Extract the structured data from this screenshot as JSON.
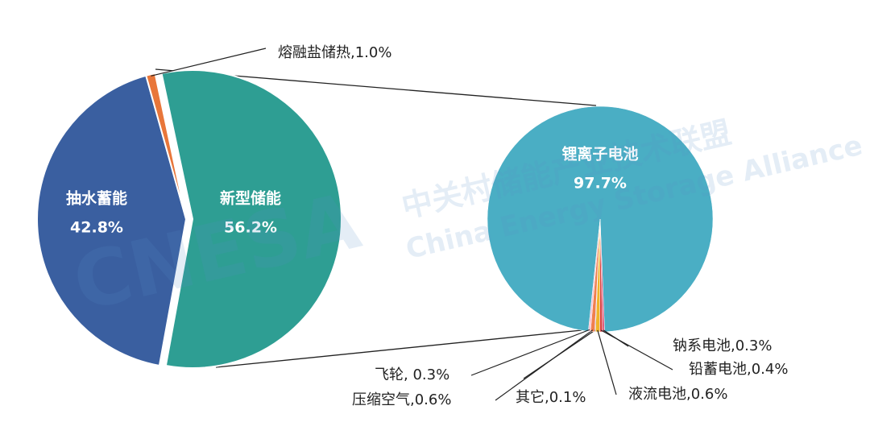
{
  "chart_data": [
    {
      "type": "pie",
      "categories": [
        "新型储能",
        "抽水蓄能",
        null
      ],
      "values": [
        56.2,
        42.8,
        1.0
      ],
      "value_labels": [
        "56.2%",
        "42.8%",
        "熔融盐储热,1.0%"
      ],
      "colors": [
        "#2e9e93",
        "#3a5fa0",
        "#e8763a"
      ]
    },
    {
      "type": "pie",
      "categories": [
        "锂离子电池",
        null,
        null,
        null,
        null,
        null,
        null
      ],
      "values": [
        97.7,
        0.3,
        0.4,
        0.6,
        0.1,
        0.6,
        0.3
      ],
      "value_labels": [
        "97.7%",
        "钠系电池,0.3%",
        "铅蓄电池,0.4%",
        "液流电池,0.6%",
        "其它,0.1%",
        "压缩空气,0.6%",
        "飞轮, 0.3%"
      ],
      "colors": [
        "#4aaec4",
        "#e05a7a",
        "#d94040",
        "#f0b429",
        "#8e6bbf",
        "#f07f4e",
        "#f5c1d0"
      ]
    }
  ],
  "watermark": [
    "CNESA",
    "中关村储能产业技术联盟",
    "China Energy Storage Alliance"
  ]
}
